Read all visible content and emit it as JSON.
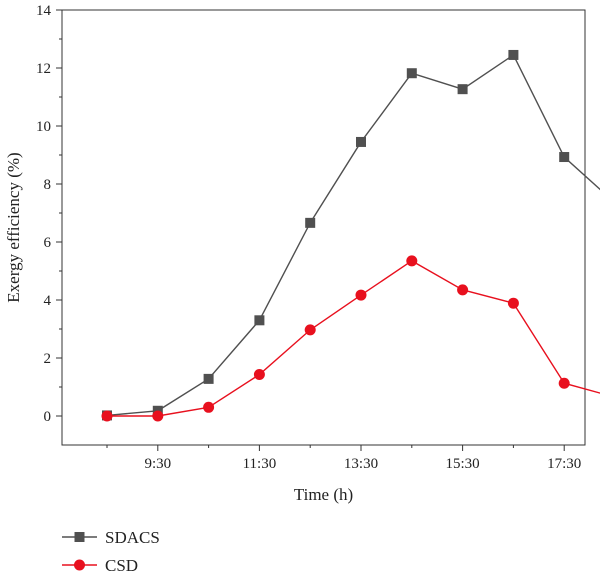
{
  "chart_data": {
    "type": "line",
    "xlabel": "Time (h)",
    "ylabel": "Exergy efficiency (%)",
    "x": [
      "8:30",
      "9:30",
      "10:30",
      "11:30",
      "12:30",
      "13:30",
      "14:30",
      "15:30",
      "16:30",
      "17:30",
      "18:30"
    ],
    "x_tick_labels": [
      "9:30",
      "11:30",
      "13:30",
      "15:30",
      "17:30"
    ],
    "ylim": [
      -1,
      14
    ],
    "y_ticks": [
      0,
      2,
      4,
      6,
      8,
      10,
      12,
      14
    ],
    "grid": false,
    "legend_position": "bottom-left",
    "series": [
      {
        "name": "SDACS",
        "color": "#505050",
        "marker": "square",
        "values": [
          0.02,
          0.18,
          1.28,
          3.3,
          6.66,
          9.45,
          11.82,
          11.27,
          12.45,
          8.93,
          7.35
        ]
      },
      {
        "name": "CSD",
        "color": "#e8101e",
        "marker": "circle",
        "values": [
          0.0,
          0.0,
          0.3,
          1.43,
          2.97,
          4.17,
          5.35,
          4.35,
          3.89,
          1.13,
          0.65
        ]
      }
    ]
  }
}
